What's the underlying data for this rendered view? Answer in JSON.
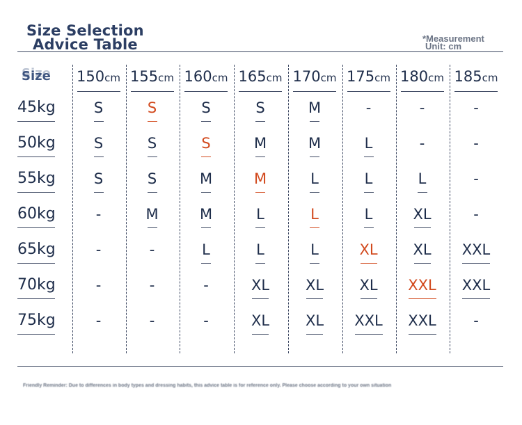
{
  "title": {
    "line1": "Size Selection",
    "line2": "Advice Table"
  },
  "unit_note": {
    "line1": "*Measurement",
    "line2": "Unit: cm"
  },
  "corner_label": "Size",
  "unit_suffix": "cm",
  "heights": [
    "150",
    "155",
    "160",
    "165",
    "170",
    "175",
    "180",
    "185"
  ],
  "rows": [
    {
      "weight": "45kg",
      "cells": [
        "S",
        "S",
        "S",
        "S",
        "M",
        "-",
        "-",
        "-"
      ],
      "highlight": 1
    },
    {
      "weight": "50kg",
      "cells": [
        "S",
        "S",
        "S",
        "M",
        "M",
        "L",
        "-",
        "-"
      ],
      "highlight": 2
    },
    {
      "weight": "55kg",
      "cells": [
        "S",
        "S",
        "M",
        "M",
        "L",
        "L",
        "L",
        "-"
      ],
      "highlight": 3
    },
    {
      "weight": "60kg",
      "cells": [
        "-",
        "M",
        "M",
        "L",
        "L",
        "L",
        "XL",
        "-"
      ],
      "highlight": 4
    },
    {
      "weight": "65kg",
      "cells": [
        "-",
        "-",
        "L",
        "L",
        "L",
        "XL",
        "XL",
        "XXL"
      ],
      "highlight": 5
    },
    {
      "weight": "70kg",
      "cells": [
        "-",
        "-",
        "-",
        "XL",
        "XL",
        "XL",
        "XXL",
        "XXL"
      ],
      "highlight": 6
    },
    {
      "weight": "75kg",
      "cells": [
        "-",
        "-",
        "-",
        "XL",
        "XL",
        "XXL",
        "XXL",
        "-"
      ],
      "highlight": -1
    }
  ],
  "reminder": "Friendly Reminder: Due to differences in body types and dressing habits, this advice table is for reference only. Please choose according to your own situation",
  "colors": {
    "text": "#1e2d4a",
    "highlight": "#d24a1e",
    "title": "#2c3e63",
    "lines": "#3b4660"
  }
}
